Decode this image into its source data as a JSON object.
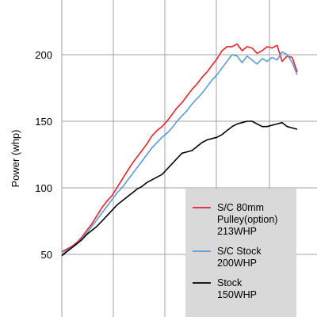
{
  "chart_data": {
    "type": "line",
    "ylabel": "Power (whp)",
    "xlabel": "",
    "ylim": [
      0,
      220
    ],
    "yticks": [
      50,
      100,
      150,
      200
    ],
    "grid": true,
    "legend_position": "bottom-right",
    "series": [
      {
        "name_lines": [
          "S/C 80mm",
          "Pulley(option)",
          "213WHP"
        ],
        "color": "#e8202a",
        "x": [
          0,
          1,
          2,
          3,
          4,
          5,
          6,
          7,
          8,
          9,
          10,
          11,
          12,
          13,
          14,
          15,
          16,
          17,
          18,
          19,
          20,
          21,
          22,
          23,
          24,
          25,
          26,
          27,
          28,
          29,
          30,
          31,
          32,
          33,
          34,
          35,
          36,
          37,
          38,
          39,
          40,
          41,
          42,
          43,
          44,
          45,
          46,
          47
        ],
        "values": [
          52,
          54,
          56,
          59,
          63,
          68,
          73,
          79,
          85,
          90,
          94,
          100,
          106,
          112,
          118,
          123,
          128,
          133,
          139,
          143,
          146,
          150,
          155,
          160,
          164,
          169,
          174,
          178,
          183,
          187,
          192,
          197,
          203,
          206,
          206,
          208,
          203,
          206,
          205,
          201,
          203,
          206,
          205,
          207,
          195,
          199,
          198,
          187
        ]
      },
      {
        "name_lines": [
          "S/C Stock",
          "200WHP"
        ],
        "color": "#5b9bd5",
        "x": [
          0,
          1,
          2,
          3,
          4,
          5,
          6,
          7,
          8,
          9,
          10,
          11,
          12,
          13,
          14,
          15,
          16,
          17,
          18,
          19,
          20,
          21,
          22,
          23,
          24,
          25,
          26,
          27,
          28,
          29,
          30,
          31,
          32,
          33,
          34,
          35,
          36,
          37,
          38,
          39,
          40,
          41,
          42,
          43,
          44,
          45,
          46,
          47
        ],
        "values": [
          50,
          53,
          55,
          58,
          62,
          66,
          71,
          76,
          81,
          86,
          91,
          96,
          100,
          105,
          110,
          115,
          120,
          125,
          130,
          134,
          138,
          141,
          145,
          150,
          154,
          158,
          163,
          167,
          171,
          176,
          181,
          185,
          190,
          195,
          200,
          199,
          194,
          199,
          196,
          193,
          197,
          195,
          198,
          196,
          202,
          200,
          194,
          185
        ]
      },
      {
        "name_lines": [
          "Stock",
          "150WHP"
        ],
        "color": "#000000",
        "x": [
          0,
          1,
          2,
          3,
          4,
          5,
          6,
          7,
          8,
          9,
          10,
          11,
          12,
          13,
          14,
          15,
          16,
          17,
          18,
          19,
          20,
          21,
          22,
          23,
          24,
          25,
          26,
          27,
          28,
          29,
          30,
          31,
          32,
          33,
          34,
          35,
          36,
          37,
          38,
          39,
          40,
          41,
          42,
          43,
          44,
          45,
          46,
          47
        ],
        "values": [
          49,
          52,
          55,
          58,
          61,
          65,
          68,
          71,
          75,
          79,
          83,
          87,
          90,
          93,
          96,
          99,
          101,
          104,
          106,
          108,
          110,
          114,
          118,
          122,
          126,
          127,
          128,
          131,
          134,
          136,
          137,
          138,
          140,
          143,
          146,
          148,
          149,
          150,
          150,
          148,
          146,
          146,
          147,
          148,
          149,
          146,
          145,
          144
        ]
      }
    ]
  }
}
